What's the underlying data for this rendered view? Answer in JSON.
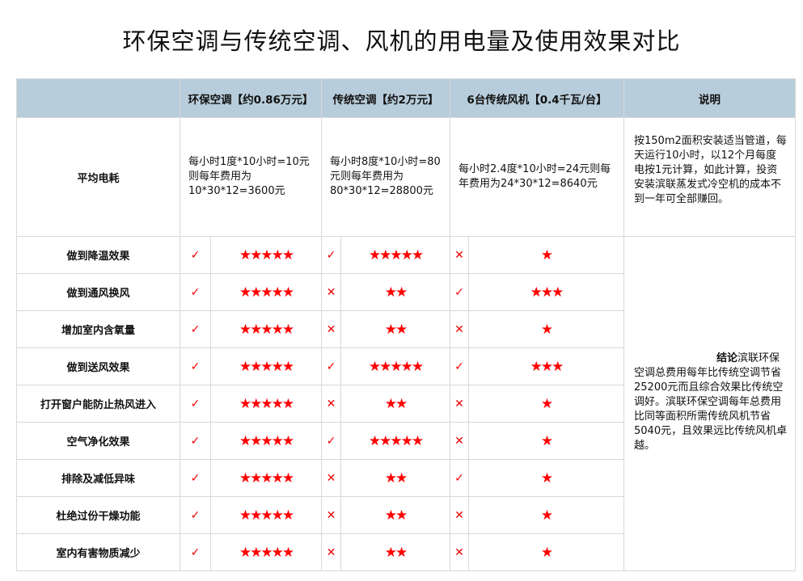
{
  "title": "环保空调与传统空调、风机的用电量及使用效果对比",
  "headers": [
    "",
    "环保空调【约0.86万元】",
    "传统空调【约2万元】",
    "6台传统风机【0.4千瓦/台】",
    "说明"
  ],
  "power": {
    "label": "平均电耗",
    "eco": "每小时1度*10小时=10元则每年费用为10*30*12=3600元",
    "trad": "每小时8度*10小时=80元则每年费用为80*30*12=28800元",
    "fan": "每小时2.4度*10小时=24元则每年费用为24*30*12=8640元",
    "note": "按150m2面积安装适当管道，每天运行10小时，以12个月每度电按1元计算，如此计算，投资安装滨联蒸发式冷空机的成本不到一年可全部赚回。"
  },
  "conclusion": {
    "bold": "结论",
    "text": "滨联环保空调总费用每年比传统空调节省25200元而且综合效果比传统空调好。滨联环保空调每年总费用比同等面积所需传统风机节省5040元，且效果远比传统风机卓越。"
  },
  "colors": {
    "mark": "#ee0000",
    "star": "#ff0000",
    "header_bg": "#b8cddb"
  },
  "rows": [
    {
      "label": "做到降温效果",
      "eco": [
        "✓",
        "★★★★★"
      ],
      "trad": [
        "✓",
        "★★★★★"
      ],
      "fan": [
        "✕",
        "★"
      ]
    },
    {
      "label": "做到通风换风",
      "eco": [
        "✓",
        "★★★★★"
      ],
      "trad": [
        "✕",
        "★★"
      ],
      "fan": [
        "✓",
        "★★★"
      ]
    },
    {
      "label": "增加室内含氧量",
      "eco": [
        "✓",
        "★★★★★"
      ],
      "trad": [
        "✕",
        "★★"
      ],
      "fan": [
        "✕",
        "★"
      ]
    },
    {
      "label": "做到送风效果",
      "eco": [
        "✓",
        "★★★★★"
      ],
      "trad": [
        "✓",
        "★★★★★"
      ],
      "fan": [
        "✓",
        "★★★"
      ]
    },
    {
      "label": "打开窗户能防止热风进入",
      "eco": [
        "✓",
        "★★★★★"
      ],
      "trad": [
        "✕",
        "★★"
      ],
      "fan": [
        "✕",
        "★"
      ]
    },
    {
      "label": "空气净化效果",
      "eco": [
        "✓",
        "★★★★★"
      ],
      "trad": [
        "✓",
        "★★★★★"
      ],
      "fan": [
        "✕",
        "★"
      ]
    },
    {
      "label": "排除及减低异味",
      "eco": [
        "✓",
        "★★★★★"
      ],
      "trad": [
        "✕",
        "★★"
      ],
      "fan": [
        "✓",
        "★"
      ]
    },
    {
      "label": "杜绝过份干燥功能",
      "eco": [
        "✓",
        "★★★★★"
      ],
      "trad": [
        "✕",
        "★★"
      ],
      "fan": [
        "✕",
        "★"
      ]
    },
    {
      "label": "室内有害物质减少",
      "eco": [
        "✓",
        "★★★★★"
      ],
      "trad": [
        "✕",
        "★★"
      ],
      "fan": [
        "✕",
        "★"
      ]
    }
  ]
}
